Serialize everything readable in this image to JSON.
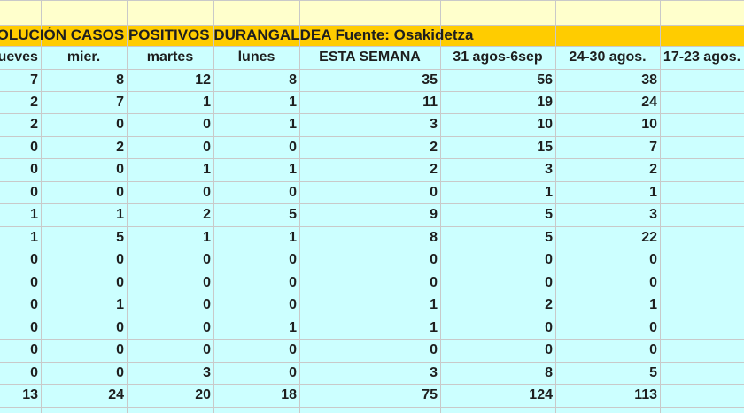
{
  "sheet": {
    "title": "EVOLUCIÓN CASOS POSITIVOS DURANGALDEA Fuente: Osakidetza",
    "headers": [
      "jueves",
      "mier.",
      "martes",
      "lunes",
      "ESTA SEMANA",
      "31 agos-6sep",
      "24-30 agos.",
      "17-23 agos."
    ],
    "rows": [
      [
        "7",
        "8",
        "12",
        "8",
        "35",
        "56",
        "38",
        ""
      ],
      [
        "2",
        "7",
        "1",
        "1",
        "11",
        "19",
        "24",
        ""
      ],
      [
        "2",
        "0",
        "0",
        "1",
        "3",
        "10",
        "10",
        ""
      ],
      [
        "0",
        "2",
        "0",
        "0",
        "2",
        "15",
        "7",
        ""
      ],
      [
        "0",
        "0",
        "1",
        "1",
        "2",
        "3",
        "2",
        ""
      ],
      [
        "0",
        "0",
        "0",
        "0",
        "0",
        "1",
        "1",
        ""
      ],
      [
        "1",
        "1",
        "2",
        "5",
        "9",
        "5",
        "3",
        ""
      ],
      [
        "1",
        "5",
        "1",
        "1",
        "8",
        "5",
        "22",
        ""
      ],
      [
        "0",
        "0",
        "0",
        "0",
        "0",
        "0",
        "0",
        ""
      ],
      [
        "0",
        "0",
        "0",
        "0",
        "0",
        "0",
        "0",
        ""
      ],
      [
        "0",
        "1",
        "0",
        "0",
        "1",
        "2",
        "1",
        ""
      ],
      [
        "0",
        "0",
        "0",
        "1",
        "1",
        "0",
        "0",
        ""
      ],
      [
        "0",
        "0",
        "0",
        "0",
        "0",
        "0",
        "0",
        ""
      ],
      [
        "0",
        "0",
        "3",
        "0",
        "3",
        "8",
        "5",
        ""
      ]
    ],
    "totals": [
      "13",
      "24",
      "20",
      "18",
      "75",
      "124",
      "113",
      ""
    ]
  }
}
